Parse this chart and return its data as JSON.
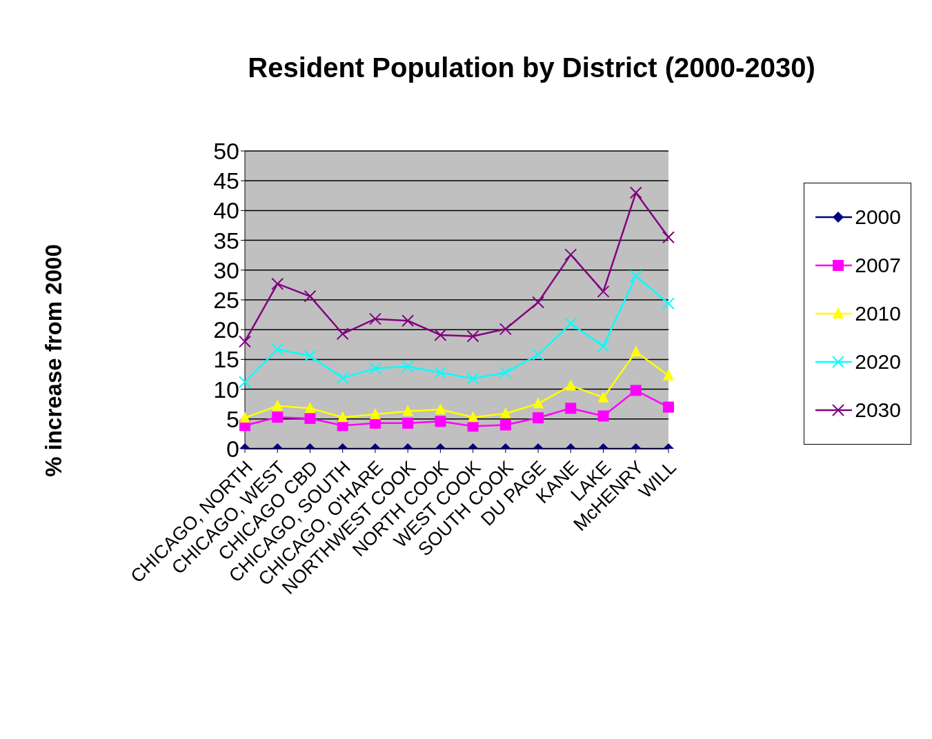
{
  "chart_data": {
    "type": "line",
    "title": "Resident Population by District (2000-2030)",
    "ylabel": "% increase from 2000",
    "categories": [
      "CHICAGO, NORTH",
      "CHICAGO, WEST",
      "CHICAGO CBD",
      "CHICAGO, SOUTH",
      "CHICAGO, O'HARE",
      "NORTHWEST COOK",
      "NORTH COOK",
      "WEST COOK",
      "SOUTH COOK",
      "DU PAGE",
      "KANE",
      "LAKE",
      "McHENRY",
      "WILL"
    ],
    "series": [
      {
        "name": "2000",
        "color": "#000080",
        "marker": "diamond",
        "values": [
          0,
          0,
          0,
          0,
          0,
          0,
          0,
          0,
          0,
          0,
          0,
          0,
          0,
          0
        ]
      },
      {
        "name": "2007",
        "color": "#ff00ff",
        "marker": "square",
        "values": [
          3.9,
          5.3,
          5.1,
          3.9,
          4.3,
          4.3,
          4.6,
          3.8,
          4.0,
          5.2,
          6.8,
          5.5,
          9.8,
          7.0
        ]
      },
      {
        "name": "2010",
        "color": "#ffff00",
        "marker": "triangle",
        "values": [
          5.2,
          7.2,
          6.8,
          5.3,
          5.8,
          6.3,
          6.6,
          5.3,
          5.9,
          7.6,
          10.6,
          8.6,
          16.3,
          12.3
        ]
      },
      {
        "name": "2020",
        "color": "#00ffff",
        "marker": "cross",
        "values": [
          11.2,
          16.7,
          15.6,
          11.9,
          13.5,
          13.8,
          12.8,
          11.8,
          12.8,
          15.8,
          21.0,
          17.2,
          29.0,
          24.4
        ]
      },
      {
        "name": "2030",
        "color": "#800080",
        "marker": "cross",
        "values": [
          18.0,
          27.7,
          25.6,
          19.3,
          21.8,
          21.5,
          19.1,
          18.9,
          20.1,
          24.6,
          32.6,
          26.4,
          43.0,
          35.5
        ]
      }
    ],
    "ylim": [
      0,
      50
    ],
    "yticks": [
      0,
      5,
      10,
      15,
      20,
      25,
      30,
      35,
      40,
      45,
      50
    ],
    "grid": "y",
    "legend": "right"
  }
}
